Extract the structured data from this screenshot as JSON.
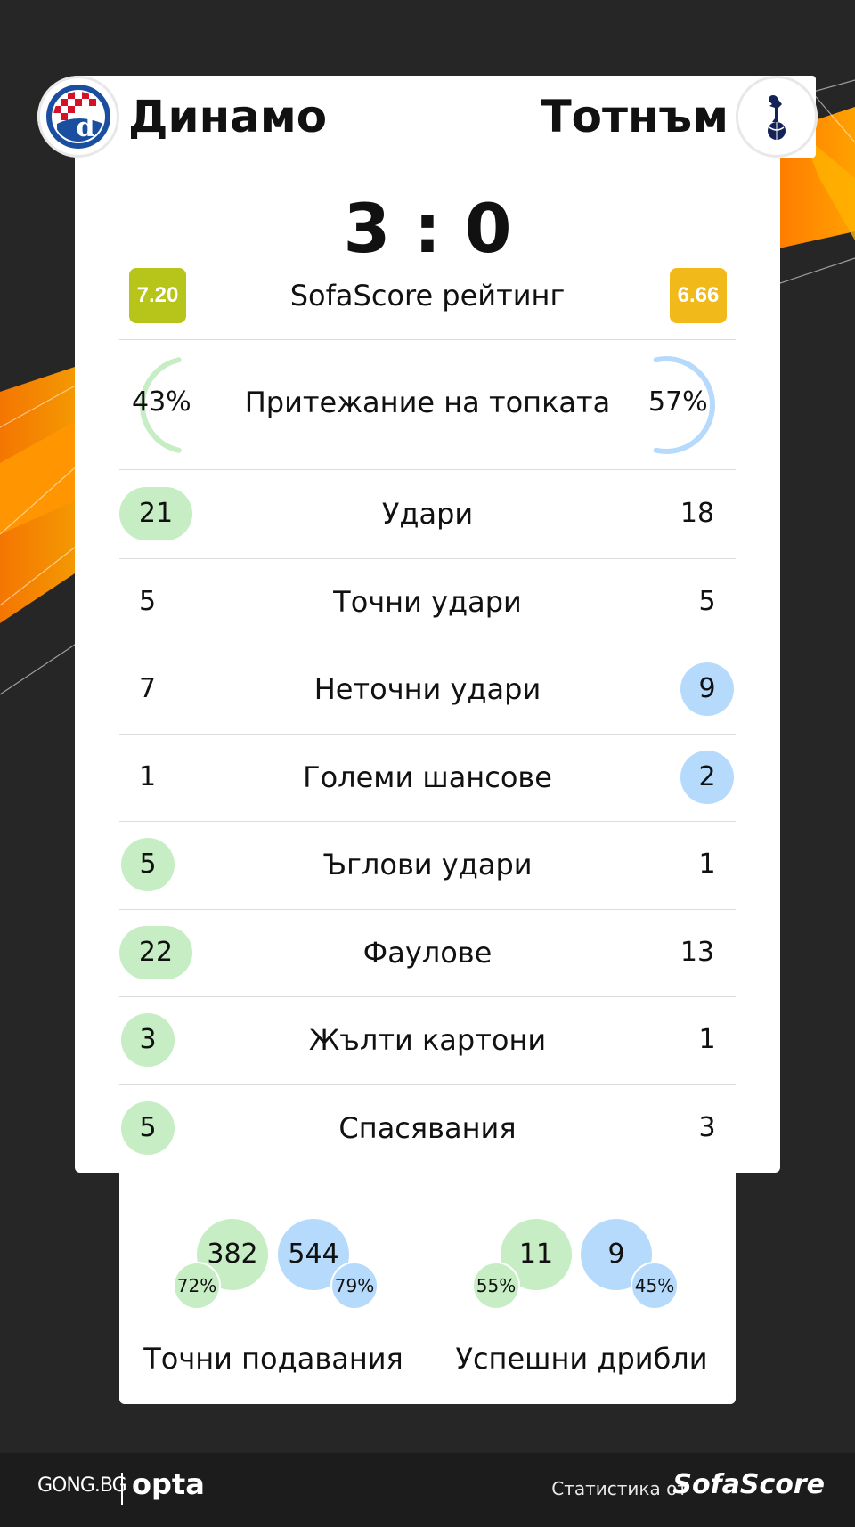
{
  "header": {
    "home": {
      "name": "Динамо",
      "logo_icon": "dinamo-crest-icon"
    },
    "away": {
      "name": "Тотнъм",
      "logo_icon": "tottenham-crest-icon"
    }
  },
  "score": "3 : 0",
  "rating": {
    "label": "SofaScore рейтинг",
    "home": "7.20",
    "away": "6.66",
    "home_color": "#b7c41a",
    "away_color": "#f2b91a"
  },
  "possession": {
    "label": "Притежание на топката",
    "home": "43%",
    "away": "57%",
    "home_fraction": 0.43,
    "away_fraction": 0.57
  },
  "stats": [
    {
      "label": "Удари",
      "home": "21",
      "away": "18",
      "highlight": "home"
    },
    {
      "label": "Точни удари",
      "home": "5",
      "away": "5",
      "highlight": "none"
    },
    {
      "label": "Неточни удари",
      "home": "7",
      "away": "9",
      "highlight": "away"
    },
    {
      "label": "Големи шансове",
      "home": "1",
      "away": "2",
      "highlight": "away"
    },
    {
      "label": "Ъглови удари",
      "home": "5",
      "away": "1",
      "highlight": "home"
    },
    {
      "label": "Фаулове",
      "home": "22",
      "away": "13",
      "highlight": "home"
    },
    {
      "label": "Жълти картони",
      "home": "3",
      "away": "1",
      "highlight": "home"
    },
    {
      "label": "Спасявания",
      "home": "5",
      "away": "3",
      "highlight": "home"
    }
  ],
  "bottom": {
    "passes": {
      "label": "Точни подавания",
      "home": "382",
      "home_pct": "72%",
      "away": "544",
      "away_pct": "79%"
    },
    "dribbles": {
      "label": "Успешни дрибли",
      "home": "11",
      "home_pct": "55%",
      "away": "9",
      "away_pct": "45%"
    }
  },
  "colors": {
    "home": "#c7edc4",
    "away": "#b6dafb",
    "accent": "#ff8c00"
  },
  "footer": {
    "gong": "GONG.BG",
    "opta": "opta",
    "stats_by": "Статистика от",
    "sofascore": "SofaScore"
  }
}
